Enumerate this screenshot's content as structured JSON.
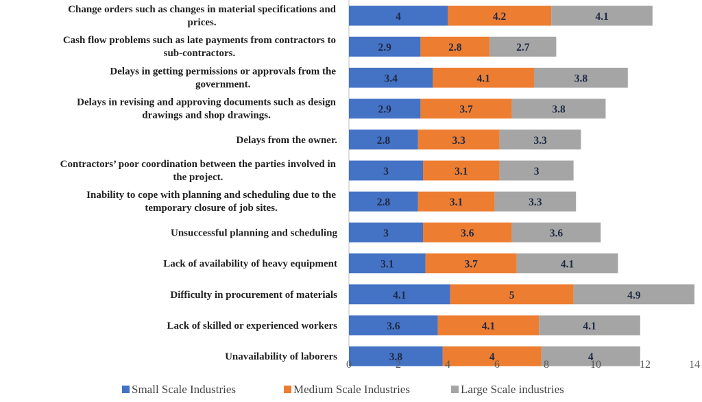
{
  "chart_data": {
    "type": "bar",
    "orientation": "horizontal",
    "stacked": true,
    "categories": [
      [
        "Change orders such as changes in material specifications and",
        "prices."
      ],
      [
        "Cash flow problems such as late payments from contractors to",
        "sub-contractors."
      ],
      [
        "Delays in getting permissions or approvals from the",
        "government."
      ],
      [
        "Delays in revising and approving documents such as design",
        "drawings and shop drawings."
      ],
      [
        "Delays from the owner."
      ],
      [
        "Contractors’ poor coordination between the parties involved in",
        "the project."
      ],
      [
        "Inability to cope with planning and scheduling due to the",
        "temporary closure of job sites."
      ],
      [
        "Unsuccessful planning and scheduling"
      ],
      [
        "Lack of availability of heavy equipment"
      ],
      [
        "Difficulty in procurement of materials"
      ],
      [
        "Lack of skilled or experienced workers"
      ],
      [
        "Unavailability of laborers"
      ]
    ],
    "series": [
      {
        "name": "Small Scale Industries",
        "color": "#4472c4",
        "values": [
          4,
          2.9,
          3.4,
          2.9,
          2.8,
          3,
          2.8,
          3,
          3.1,
          4.1,
          3.6,
          3.8
        ]
      },
      {
        "name": "Medium Scale Industries",
        "color": "#ed7d31",
        "values": [
          4.2,
          2.8,
          4.1,
          3.7,
          3.3,
          3.1,
          3.1,
          3.6,
          3.7,
          5,
          4.1,
          4
        ]
      },
      {
        "name": "Large Scale industries",
        "color": "#a5a5a5",
        "values": [
          4.1,
          2.7,
          3.8,
          3.8,
          3.3,
          3,
          3.3,
          3.6,
          4.1,
          4.9,
          4.1,
          4
        ]
      }
    ],
    "xlim": [
      0,
      14
    ],
    "xticks": [
      0,
      2,
      4,
      6,
      8,
      10,
      12,
      14
    ],
    "grid": false,
    "legend_position": "bottom"
  }
}
